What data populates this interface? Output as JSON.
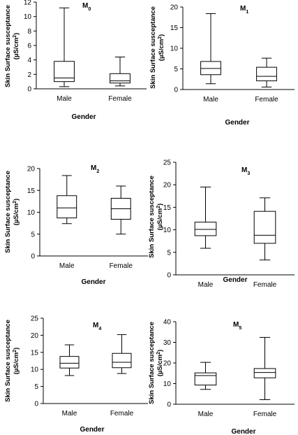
{
  "chart_data": [
    {
      "type": "boxplot",
      "title": "M",
      "title_sub": "0",
      "xlabel": "Gender",
      "ylabel_line1": "Skin Surface susceptance",
      "ylabel_line2_pre": "(µS/cm",
      "ylabel_line2_sup": "2",
      "ylabel_line2_post": ")",
      "ylim": [
        0,
        12
      ],
      "yticks": [
        0,
        2,
        4,
        6,
        8,
        10,
        12
      ],
      "categories": [
        "Male",
        "Female"
      ],
      "boxes": [
        {
          "min": 0.3,
          "q1": 1.0,
          "median": 1.5,
          "q3": 3.8,
          "max": 11.2
        },
        {
          "min": 0.4,
          "q1": 0.8,
          "median": 1.1,
          "q3": 2.1,
          "max": 4.4
        }
      ]
    },
    {
      "type": "boxplot",
      "title": "M",
      "title_sub": "1",
      "xlabel": "Gender",
      "ylabel_line1": "Skin Surface susceptance",
      "ylabel_line2_pre": "(µS/cm",
      "ylabel_line2_sup": "2",
      "ylabel_line2_post": ")",
      "ylim": [
        0,
        20
      ],
      "yticks": [
        0,
        5,
        10,
        15,
        20
      ],
      "categories": [
        "Male",
        "Female"
      ],
      "boxes": [
        {
          "min": 1.4,
          "q1": 3.6,
          "median": 5.1,
          "q3": 6.8,
          "max": 18.4
        },
        {
          "min": 0.6,
          "q1": 2.1,
          "median": 3.2,
          "q3": 5.4,
          "max": 7.6
        }
      ]
    },
    {
      "type": "boxplot",
      "title": "M",
      "title_sub": "2",
      "xlabel": "Gender",
      "ylabel_line1": "Skin Surface susceptance",
      "ylabel_line2_pre": "(µS/cm",
      "ylabel_line2_sup": "2",
      "ylabel_line2_post": ")",
      "ylim": [
        0,
        20
      ],
      "yticks": [
        0,
        5,
        10,
        15,
        20
      ],
      "categories": [
        "Male",
        "Female"
      ],
      "boxes": [
        {
          "min": 7.4,
          "q1": 8.7,
          "median": 11.0,
          "q3": 13.8,
          "max": 18.4
        },
        {
          "min": 5.0,
          "q1": 8.4,
          "median": 10.8,
          "q3": 13.2,
          "max": 16.0
        }
      ]
    },
    {
      "type": "boxplot",
      "title": "M",
      "title_sub": "3",
      "xlabel": "Gender",
      "ylabel_line1": "Skin Surface susceptance",
      "ylabel_line2_pre": "(µS/cm",
      "ylabel_line2_sup": "2",
      "ylabel_line2_post": ")",
      "ylim": [
        0,
        25
      ],
      "yticks": [
        0,
        5,
        10,
        15,
        20,
        25
      ],
      "categories": [
        "Male",
        "Female"
      ],
      "boxes": [
        {
          "min": 5.9,
          "q1": 8.7,
          "median": 10.1,
          "q3": 11.7,
          "max": 19.5
        },
        {
          "min": 3.3,
          "q1": 7.0,
          "median": 8.8,
          "q3": 14.1,
          "max": 17.1
        }
      ]
    },
    {
      "type": "boxplot",
      "title": "M",
      "title_sub": "4",
      "xlabel": "Gender",
      "ylabel_line1": "Skin Surface susceptance",
      "ylabel_line2_pre": "(µS/cm",
      "ylabel_line2_sup": "2",
      "ylabel_line2_post": ")",
      "ylim": [
        0,
        25
      ],
      "yticks": [
        0,
        5,
        10,
        15,
        20,
        25
      ],
      "categories": [
        "Male",
        "Female"
      ],
      "boxes": [
        {
          "min": 8.2,
          "q1": 10.4,
          "median": 11.8,
          "q3": 13.8,
          "max": 17.2
        },
        {
          "min": 8.8,
          "q1": 10.5,
          "median": 12.1,
          "q3": 14.7,
          "max": 20.2
        }
      ]
    },
    {
      "type": "boxplot",
      "title": "M",
      "title_sub": "5",
      "xlabel": "Gender",
      "ylabel_line1": "Skin Surface susceptance",
      "ylabel_line2_pre": "(µS/cm",
      "ylabel_line2_sup": "2",
      "ylabel_line2_post": ")",
      "ylim": [
        0,
        40
      ],
      "yticks": [
        0,
        10,
        20,
        30,
        40
      ],
      "categories": [
        "Male",
        "Female"
      ],
      "boxes": [
        {
          "min": 7.2,
          "q1": 9.3,
          "median": 13.9,
          "q3": 15.2,
          "max": 20.3
        },
        {
          "min": 2.2,
          "q1": 12.8,
          "median": 15.4,
          "q3": 17.3,
          "max": 32.4
        }
      ]
    }
  ]
}
